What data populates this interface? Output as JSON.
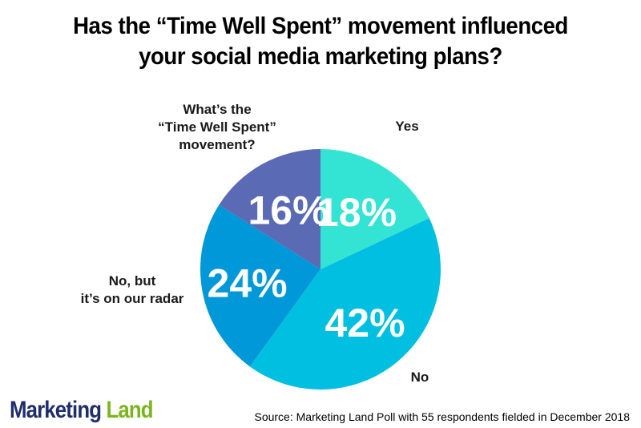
{
  "title_lines": [
    "Has the “Time Well Spent” movement influenced",
    "your social media marketing plans?"
  ],
  "chart_data": {
    "type": "pie",
    "slices": [
      {
        "label": "Yes",
        "value": 18,
        "display": "18%",
        "color": "#33e3d3"
      },
      {
        "label": "No",
        "value": 42,
        "display": "42%",
        "color": "#00bfe1"
      },
      {
        "label": "No, but it’s on our radar",
        "value": 24,
        "display": "24%",
        "color": "#0098d8"
      },
      {
        "label": "What’s the “Time Well Spent” movement?",
        "value": 16,
        "display": "16%",
        "color": "#5a6ab4"
      }
    ],
    "start": "12 o'clock",
    "direction": "clockwise"
  },
  "labels": {
    "yes": [
      "Yes"
    ],
    "no": [
      "No"
    ],
    "radar": [
      "No, but",
      "it’s on our radar"
    ],
    "what": [
      "What’s the",
      "“Time Well Spent”",
      "movement?"
    ]
  },
  "logo": {
    "word1": "Marketing",
    "word2": "Land"
  },
  "source": "Source: Marketing Land Poll with 55 respondents fielded in December 2018"
}
